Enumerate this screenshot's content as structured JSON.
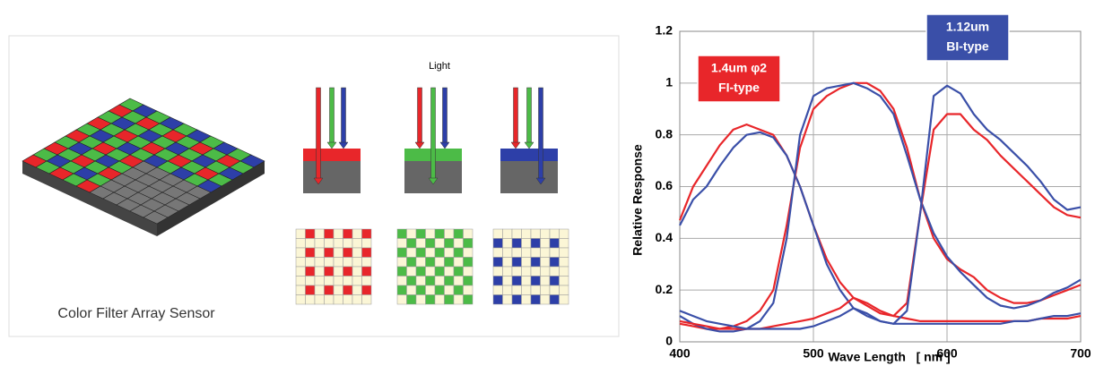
{
  "diagram": {
    "light_label": "Light",
    "caption": "Color Filter Array Sensor"
  },
  "chart_data": {
    "type": "line",
    "x_label": "Wave Length   [ nm ]",
    "y_label": "Relative Response",
    "x": [
      400,
      410,
      420,
      430,
      440,
      450,
      460,
      470,
      480,
      490,
      500,
      510,
      520,
      530,
      540,
      550,
      560,
      570,
      580,
      590,
      600,
      610,
      620,
      630,
      640,
      650,
      660,
      670,
      680,
      690,
      700
    ],
    "series": [
      {
        "color": "#e8262a",
        "values": [
          0.47,
          0.6,
          0.68,
          0.76,
          0.82,
          0.84,
          0.82,
          0.8,
          0.72,
          0.6,
          0.45,
          0.32,
          0.23,
          0.17,
          0.14,
          0.11,
          0.1,
          0.09,
          0.08,
          0.08,
          0.08,
          0.08,
          0.08,
          0.08,
          0.08,
          0.08,
          0.08,
          0.09,
          0.09,
          0.09,
          0.1
        ]
      },
      {
        "color": "#3a4fa8",
        "values": [
          0.45,
          0.55,
          0.6,
          0.68,
          0.75,
          0.8,
          0.81,
          0.79,
          0.72,
          0.6,
          0.45,
          0.3,
          0.2,
          0.13,
          0.1,
          0.08,
          0.07,
          0.07,
          0.07,
          0.07,
          0.07,
          0.07,
          0.07,
          0.07,
          0.07,
          0.08,
          0.08,
          0.09,
          0.1,
          0.1,
          0.11
        ]
      },
      {
        "color": "#e8262a",
        "values": [
          0.07,
          0.06,
          0.05,
          0.05,
          0.06,
          0.08,
          0.12,
          0.2,
          0.45,
          0.75,
          0.9,
          0.95,
          0.98,
          1.0,
          1.0,
          0.97,
          0.9,
          0.75,
          0.55,
          0.4,
          0.32,
          0.28,
          0.25,
          0.2,
          0.17,
          0.15,
          0.15,
          0.16,
          0.18,
          0.2,
          0.22
        ]
      },
      {
        "color": "#3a4fa8",
        "values": [
          0.1,
          0.07,
          0.05,
          0.04,
          0.04,
          0.05,
          0.08,
          0.15,
          0.4,
          0.8,
          0.95,
          0.98,
          0.99,
          1.0,
          0.98,
          0.95,
          0.88,
          0.72,
          0.55,
          0.42,
          0.33,
          0.27,
          0.22,
          0.17,
          0.14,
          0.13,
          0.14,
          0.16,
          0.19,
          0.21,
          0.24
        ]
      },
      {
        "color": "#e8262a",
        "values": [
          0.08,
          0.07,
          0.06,
          0.05,
          0.05,
          0.05,
          0.05,
          0.06,
          0.07,
          0.08,
          0.09,
          0.11,
          0.13,
          0.17,
          0.15,
          0.12,
          0.1,
          0.15,
          0.5,
          0.82,
          0.88,
          0.88,
          0.82,
          0.78,
          0.72,
          0.67,
          0.62,
          0.57,
          0.52,
          0.49,
          0.48
        ]
      },
      {
        "color": "#3a4fa8",
        "values": [
          0.12,
          0.1,
          0.08,
          0.07,
          0.06,
          0.05,
          0.05,
          0.05,
          0.05,
          0.05,
          0.06,
          0.08,
          0.1,
          0.13,
          0.11,
          0.08,
          0.07,
          0.12,
          0.5,
          0.95,
          0.99,
          0.96,
          0.88,
          0.82,
          0.78,
          0.73,
          0.68,
          0.62,
          0.55,
          0.51,
          0.52
        ]
      }
    ],
    "xlim": [
      400,
      700
    ],
    "xticks": [
      400,
      500,
      600,
      700
    ],
    "ylim": [
      0,
      1.2
    ],
    "yticks": [
      0,
      0.2,
      0.4,
      0.6,
      0.8,
      1,
      1.2
    ],
    "grid": true,
    "annotations": [
      {
        "lines": [
          "1.4um φ2",
          "FI-type"
        ],
        "color": "#e8262a"
      },
      {
        "lines": [
          "1.12um",
          "BI-type"
        ],
        "color": "#3a4fa8"
      }
    ]
  }
}
